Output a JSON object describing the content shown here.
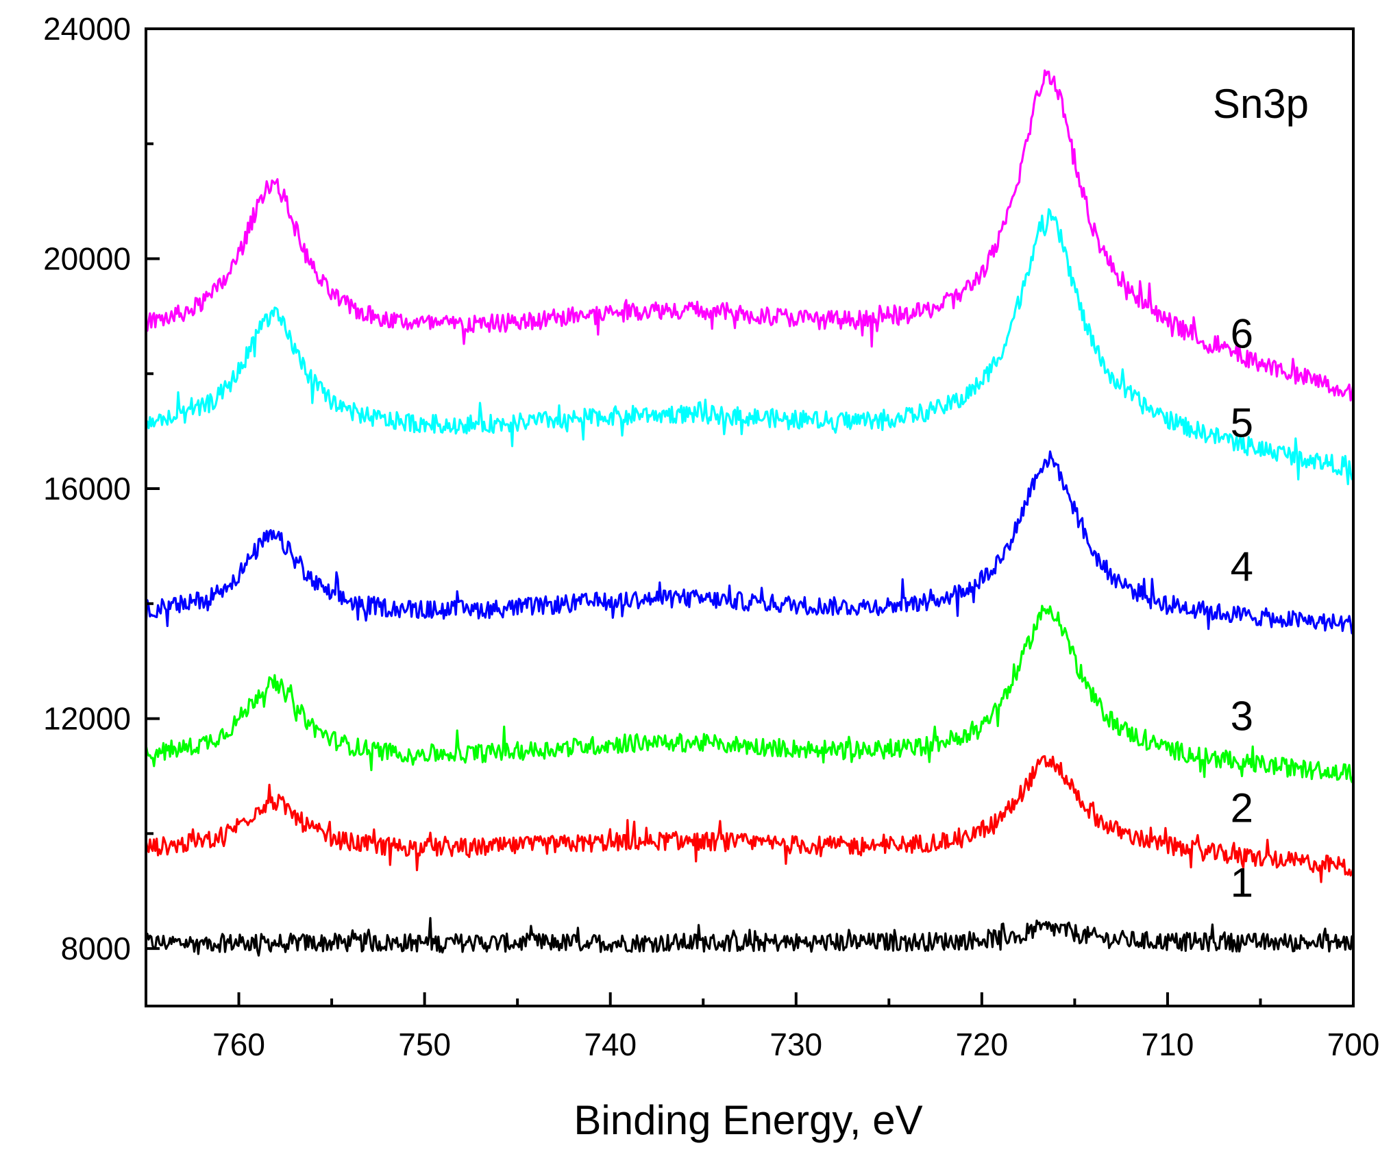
{
  "chart_data": {
    "type": "line",
    "title": "",
    "xlabel": "Binding Energy, eV",
    "ylabel": "",
    "x_reversed": true,
    "xlim": [
      765,
      700
    ],
    "ylim": [
      7000,
      24000
    ],
    "x_ticks": [
      760,
      750,
      740,
      730,
      720,
      710,
      700
    ],
    "y_ticks": [
      8000,
      12000,
      16000,
      20000,
      24000
    ],
    "annotation": "Sn3p",
    "series": [
      {
        "name": "1",
        "color": "#000000",
        "baseline": 8100,
        "peak1": 0,
        "peak2": 250,
        "hump": 0,
        "tail": 0,
        "label_x": 706,
        "label_y": 8900
      },
      {
        "name": "2",
        "color": "#ff0000",
        "baseline": 9700,
        "peak1": 850,
        "peak2": 1550,
        "hump": 150,
        "tail": -300,
        "label_x": 706,
        "label_y": 10200
      },
      {
        "name": "3",
        "color": "#00ff00",
        "baseline": 11300,
        "peak1": 1300,
        "peak2": 2600,
        "hump": 250,
        "tail": -300,
        "label_x": 706,
        "label_y": 11800
      },
      {
        "name": "4",
        "color": "#0000ff",
        "baseline": 13800,
        "peak1": 1350,
        "peak2": 2700,
        "hump": 250,
        "tail": -200,
        "label_x": 706,
        "label_y": 14400
      },
      {
        "name": "5",
        "color": "#00ffff",
        "baseline": 17000,
        "peak1": 2000,
        "peak2": 3700,
        "hump": 250,
        "tail": -700,
        "label_x": 706,
        "label_y": 16900
      },
      {
        "name": "6",
        "color": "#ff00ff",
        "baseline": 18700,
        "peak1": 2600,
        "peak2": 4500,
        "hump": 350,
        "tail": -1100,
        "label_x": 706,
        "label_y": 18450
      }
    ],
    "peak_positions": [
      758.2,
      716.4
    ],
    "noise_amplitude": 160
  }
}
